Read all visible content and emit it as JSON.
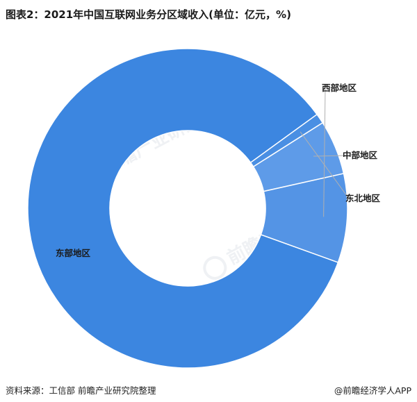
{
  "title": "图表2：2021年中国互联网业务分区域收入(单位：亿元，%)",
  "source": "资料来源：工信部 前瞻产业研究院整理",
  "credit": "@前瞻经济学人APP",
  "watermark": "前瞻产业研究院",
  "colors": {
    "east": "#3c86e0",
    "west": "#5494e5",
    "central": "#5e9be8",
    "northeast": "#4a8fe3",
    "separator": "#ffffff",
    "leader": "#b0b0b0"
  },
  "chart_data": {
    "type": "pie",
    "donut": true,
    "slices": [
      {
        "label": "东部地区",
        "value": 84.5
      },
      {
        "label": "西部地区",
        "value": 9.0
      },
      {
        "label": "中部地区",
        "value": 5.5
      },
      {
        "label": "东北地区",
        "value": 1.0
      }
    ]
  }
}
